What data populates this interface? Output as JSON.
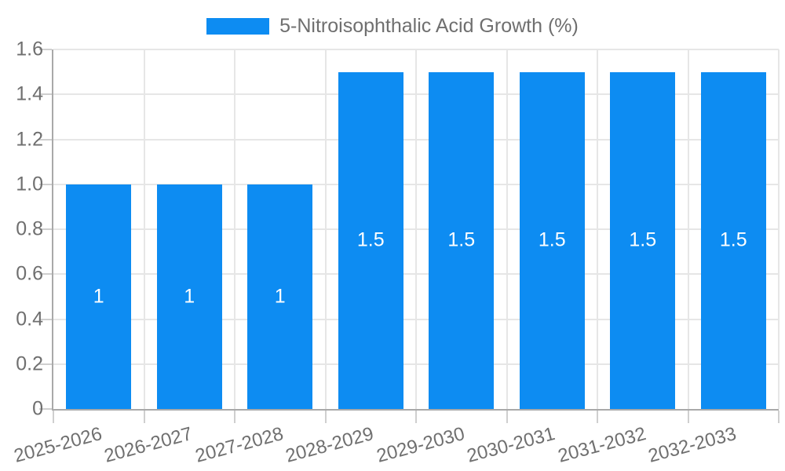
{
  "chart_data": {
    "type": "bar",
    "title": "",
    "legend": {
      "label": "5-Nitroisophthalic Acid Growth (%)",
      "position": "top"
    },
    "categories": [
      "2025-2026",
      "2026-2027",
      "2027-2028",
      "2028-2029",
      "2029-2030",
      "2030-2031",
      "2031-2032",
      "2032-2033"
    ],
    "series": [
      {
        "name": "5-Nitroisophthalic Acid Growth (%)",
        "color": "#0d8cf2",
        "values": [
          1,
          1,
          1,
          1.5,
          1.5,
          1.5,
          1.5,
          1.5
        ],
        "value_labels": [
          "1",
          "1",
          "1",
          "1.5",
          "1.5",
          "1.5",
          "1.5",
          "1.5"
        ]
      }
    ],
    "xlabel": "",
    "ylabel": "",
    "ylim": [
      0,
      1.6
    ],
    "y_ticks": [
      {
        "value": 0,
        "label": "0"
      },
      {
        "value": 0.2,
        "label": "0.2"
      },
      {
        "value": 0.4,
        "label": "0.4"
      },
      {
        "value": 0.6,
        "label": "0.6"
      },
      {
        "value": 0.8,
        "label": "0.8"
      },
      {
        "value": 1.0,
        "label": "1.0"
      },
      {
        "value": 1.2,
        "label": "1.2"
      },
      {
        "value": 1.4,
        "label": "1.4"
      },
      {
        "value": 1.6,
        "label": "1.6"
      }
    ],
    "grid": "on",
    "x_label_rotation_deg": -15,
    "colors": {
      "bar": "#0d8cf2",
      "bar_value_text": "#ffffff",
      "axis_text": "#6f6f6f",
      "legend_text": "#6f6f6f",
      "gridline": "#e6e6e6",
      "axis_line": "#a9a9a9",
      "tick_mark": "#cfcfcf",
      "background": "#ffffff"
    }
  }
}
